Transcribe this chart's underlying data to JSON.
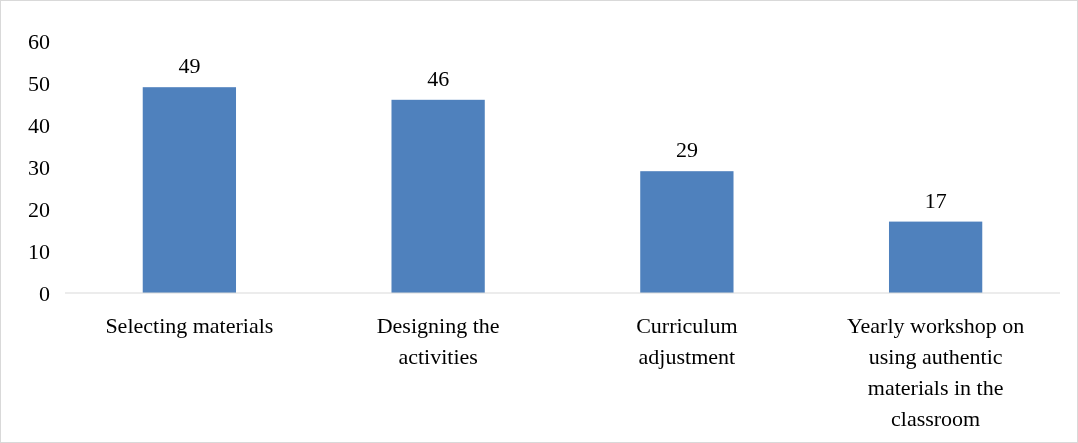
{
  "chart_data": {
    "type": "bar",
    "categories": [
      "Selecting materials",
      "Designing the activities",
      "Curriculum adjustment",
      "Yearly workshop on using authentic materials in the classroom"
    ],
    "values": [
      49,
      46,
      29,
      17
    ],
    "color": "#4f81bd",
    "ylim": [
      0,
      60
    ],
    "yticks": [
      0,
      10,
      20,
      30,
      40,
      50,
      60
    ],
    "data_labels": true,
    "grid": false
  }
}
